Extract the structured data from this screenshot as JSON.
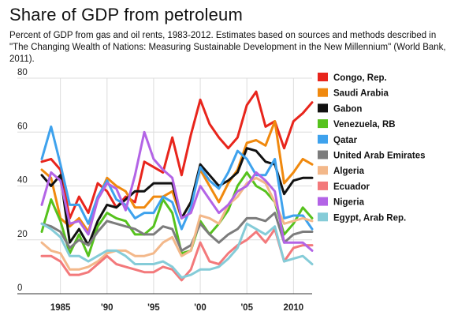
{
  "chart_data": {
    "type": "line",
    "title": "Share of GDP from petroleum",
    "subtitle": "Percent of GDP from gas and oil rents, 1983-2012. Estimates based on sources and methods described in \"The Changing Wealth of Nations: Measuring Sustainable Development in the New Millennium\" (World Bank, 2011).",
    "xlabel": "",
    "ylabel": "",
    "x": [
      1983,
      1984,
      1985,
      1986,
      1987,
      1988,
      1989,
      1990,
      1991,
      1992,
      1993,
      1994,
      1995,
      1996,
      1997,
      1998,
      1999,
      2000,
      2001,
      2002,
      2003,
      2004,
      2005,
      2006,
      2007,
      2008,
      2009,
      2010,
      2011,
      2012
    ],
    "xlim": [
      1983,
      2012
    ],
    "ylim": [
      0,
      80
    ],
    "yticks": [
      0,
      20,
      40,
      60,
      80
    ],
    "ytick_labels": [
      "0",
      "20",
      "40",
      "60",
      "80"
    ],
    "xticks": [
      1985,
      1990,
      1995,
      2000,
      2005,
      2010
    ],
    "xtick_labels": [
      "1985",
      "'90",
      "'95",
      "'00",
      "'05",
      "2010"
    ],
    "grid": true,
    "legend_position": "right",
    "series": [
      {
        "name": "Congo, Rep.",
        "color": "#e8251c",
        "values": [
          49,
          50,
          46,
          28,
          36,
          30,
          41,
          38,
          32,
          36,
          34,
          49,
          47,
          45,
          58,
          44,
          59,
          72,
          63,
          58,
          54,
          58,
          70,
          75,
          62,
          64,
          54,
          64,
          67,
          71
        ]
      },
      {
        "name": "Saudi Arabia",
        "color": "#f0890e",
        "values": [
          46,
          43,
          28,
          25,
          28,
          23,
          35,
          43,
          40,
          38,
          32,
          32,
          36,
          36,
          38,
          28,
          34,
          46,
          40,
          34,
          41,
          46,
          56,
          57,
          55,
          64,
          41,
          45,
          50,
          48
        ]
      },
      {
        "name": "Gabon",
        "color": "#111111",
        "values": [
          44,
          40,
          44,
          19,
          24,
          18,
          27,
          33,
          32,
          35,
          38,
          38,
          41,
          41,
          41,
          28,
          34,
          48,
          44,
          40,
          42,
          45,
          54,
          53,
          49,
          48,
          37,
          42,
          43,
          43
        ]
      },
      {
        "name": "Venezuela, RB",
        "color": "#56c21d",
        "values": [
          23,
          35,
          27,
          15,
          22,
          14,
          25,
          30,
          28,
          27,
          22,
          22,
          25,
          35,
          30,
          15,
          16,
          27,
          22,
          26,
          31,
          40,
          45,
          40,
          38,
          34,
          22,
          26,
          32,
          28
        ]
      },
      {
        "name": "Qatar",
        "color": "#3ea2ed",
        "values": [
          50,
          62,
          48,
          33,
          33,
          26,
          36,
          42,
          35,
          33,
          28,
          30,
          30,
          36,
          34,
          24,
          32,
          47,
          42,
          39,
          45,
          53,
          50,
          44,
          44,
          50,
          28,
          29,
          29,
          24
        ]
      },
      {
        "name": "United Arab Emirates",
        "color": "#7c7c7c",
        "values": [
          26,
          25,
          23,
          17,
          20,
          18,
          23,
          27,
          26,
          25,
          24,
          22,
          22,
          25,
          24,
          16,
          18,
          26,
          22,
          19,
          22,
          24,
          28,
          28,
          27,
          30,
          19,
          22,
          23,
          23
        ]
      },
      {
        "name": "Algeria",
        "color": "#f3b88a",
        "values": [
          19,
          16,
          15,
          9,
          9,
          10,
          12,
          15,
          16,
          16,
          14,
          14,
          15,
          19,
          21,
          14,
          16,
          29,
          28,
          26,
          33,
          36,
          41,
          43,
          41,
          34,
          26,
          27,
          28,
          27
        ]
      },
      {
        "name": "Ecuador",
        "color": "#f3797b",
        "values": [
          14,
          14,
          12,
          7,
          7,
          8,
          11,
          14,
          11,
          10,
          9,
          8,
          8,
          10,
          9,
          5,
          9,
          19,
          12,
          11,
          15,
          18,
          20,
          23,
          19,
          24,
          12,
          17,
          18,
          18
        ]
      },
      {
        "name": "Nigeria",
        "color": "#b364e6",
        "values": [
          33,
          45,
          42,
          26,
          27,
          22,
          35,
          41,
          39,
          31,
          44,
          60,
          50,
          46,
          43,
          28,
          30,
          40,
          35,
          30,
          33,
          38,
          40,
          45,
          42,
          38,
          19,
          19,
          19,
          16
        ]
      },
      {
        "name": "Egypt, Arab Rep.",
        "color": "#85ccd8",
        "values": [
          26,
          24,
          21,
          14,
          14,
          12,
          14,
          16,
          16,
          14,
          11,
          11,
          11,
          12,
          10,
          6,
          7,
          9,
          9,
          10,
          13,
          17,
          26,
          24,
          22,
          25,
          12,
          13,
          14,
          11
        ]
      }
    ]
  }
}
